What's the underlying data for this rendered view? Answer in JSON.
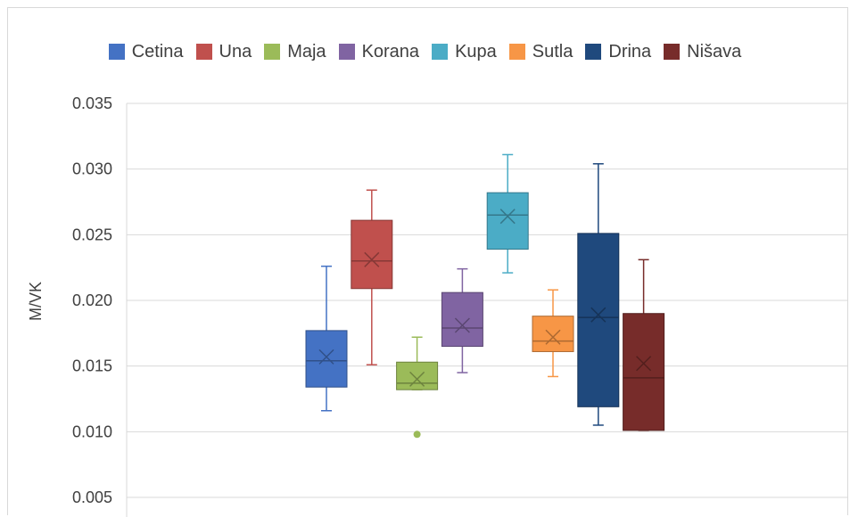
{
  "chart_data": {
    "type": "box",
    "ylabel": "M/VK",
    "ylim": [
      0.005,
      0.035
    ],
    "yticks": [
      "0.035",
      "0.030",
      "0.025",
      "0.020",
      "0.015",
      "0.010",
      "0.005"
    ],
    "grid": true,
    "legend_position": "top",
    "series": [
      {
        "name": "Cetina",
        "color": "#4472c4",
        "min": 0.0116,
        "q1": 0.0134,
        "median": 0.0154,
        "q3": 0.0177,
        "max": 0.0226,
        "mean": 0.0157,
        "outliers": []
      },
      {
        "name": "Una",
        "color": "#c0504d",
        "min": 0.0151,
        "q1": 0.0209,
        "median": 0.023,
        "q3": 0.0261,
        "max": 0.0284,
        "mean": 0.0231,
        "outliers": []
      },
      {
        "name": "Maja",
        "color": "#9bbb59",
        "min": 0.0132,
        "q1": 0.0132,
        "median": 0.0137,
        "q3": 0.0153,
        "max": 0.0172,
        "mean": 0.014,
        "outliers": [
          0.0098
        ]
      },
      {
        "name": "Korana",
        "color": "#8064a2",
        "min": 0.0145,
        "q1": 0.0165,
        "median": 0.0179,
        "q3": 0.0206,
        "max": 0.0224,
        "mean": 0.0181,
        "outliers": []
      },
      {
        "name": "Kupa",
        "color": "#4bacc6",
        "min": 0.0221,
        "q1": 0.0239,
        "median": 0.0265,
        "q3": 0.0282,
        "max": 0.0311,
        "mean": 0.0264,
        "outliers": []
      },
      {
        "name": "Sutla",
        "color": "#f79646",
        "min": 0.0142,
        "q1": 0.0161,
        "median": 0.0169,
        "q3": 0.0188,
        "max": 0.0208,
        "mean": 0.0172,
        "outliers": []
      },
      {
        "name": "Drina",
        "color": "#1f497d",
        "min": 0.0105,
        "q1": 0.0119,
        "median": 0.0187,
        "q3": 0.0251,
        "max": 0.0304,
        "mean": 0.0189,
        "outliers": []
      },
      {
        "name": "Nišava",
        "color": "#772c2a",
        "min": 0.0101,
        "q1": 0.0101,
        "median": 0.0141,
        "q3": 0.019,
        "max": 0.0231,
        "mean": 0.0152,
        "outliers": []
      }
    ]
  }
}
